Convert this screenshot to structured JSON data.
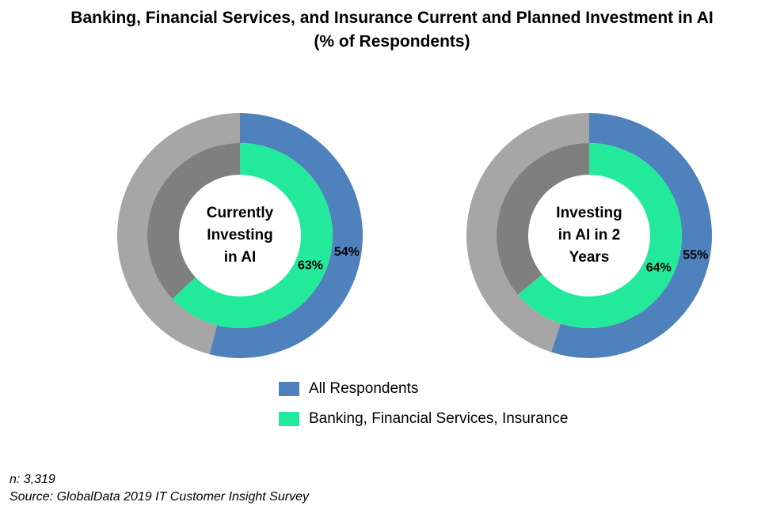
{
  "title_line1": "Banking, Financial Services, and Insurance Current and Planned Investment in AI",
  "title_line2": "(% of Respondents)",
  "colors": {
    "all_respondents": "#4f81bd",
    "bfsi": "#22ea9a",
    "outer_remainder": "#a6a6a6",
    "inner_remainder": "#7f7f7f"
  },
  "chart_data": [
    {
      "type": "pie",
      "subtype": "doughnut",
      "center_label": "Currently Investing in AI",
      "series": [
        {
          "name": "All Respondents",
          "ring": "outer",
          "value": 54,
          "label": "54%"
        },
        {
          "name": "Banking, Financial Services, Insurance",
          "ring": "inner",
          "value": 63,
          "label": "63%"
        }
      ]
    },
    {
      "type": "pie",
      "subtype": "doughnut",
      "center_label": "Investing in AI in 2 Years",
      "series": [
        {
          "name": "All Respondents",
          "ring": "outer",
          "value": 55,
          "label": "55%"
        },
        {
          "name": "Banking, Financial Services, Insurance",
          "ring": "inner",
          "value": 64,
          "label": "64%"
        }
      ]
    }
  ],
  "legend": [
    {
      "label": "All Respondents"
    },
    {
      "label": "Banking, Financial Services, Insurance"
    }
  ],
  "footer": {
    "n_text": "n:  3,319",
    "source_text": "Source:  GlobalData 2019 IT Customer Insight Survey"
  }
}
